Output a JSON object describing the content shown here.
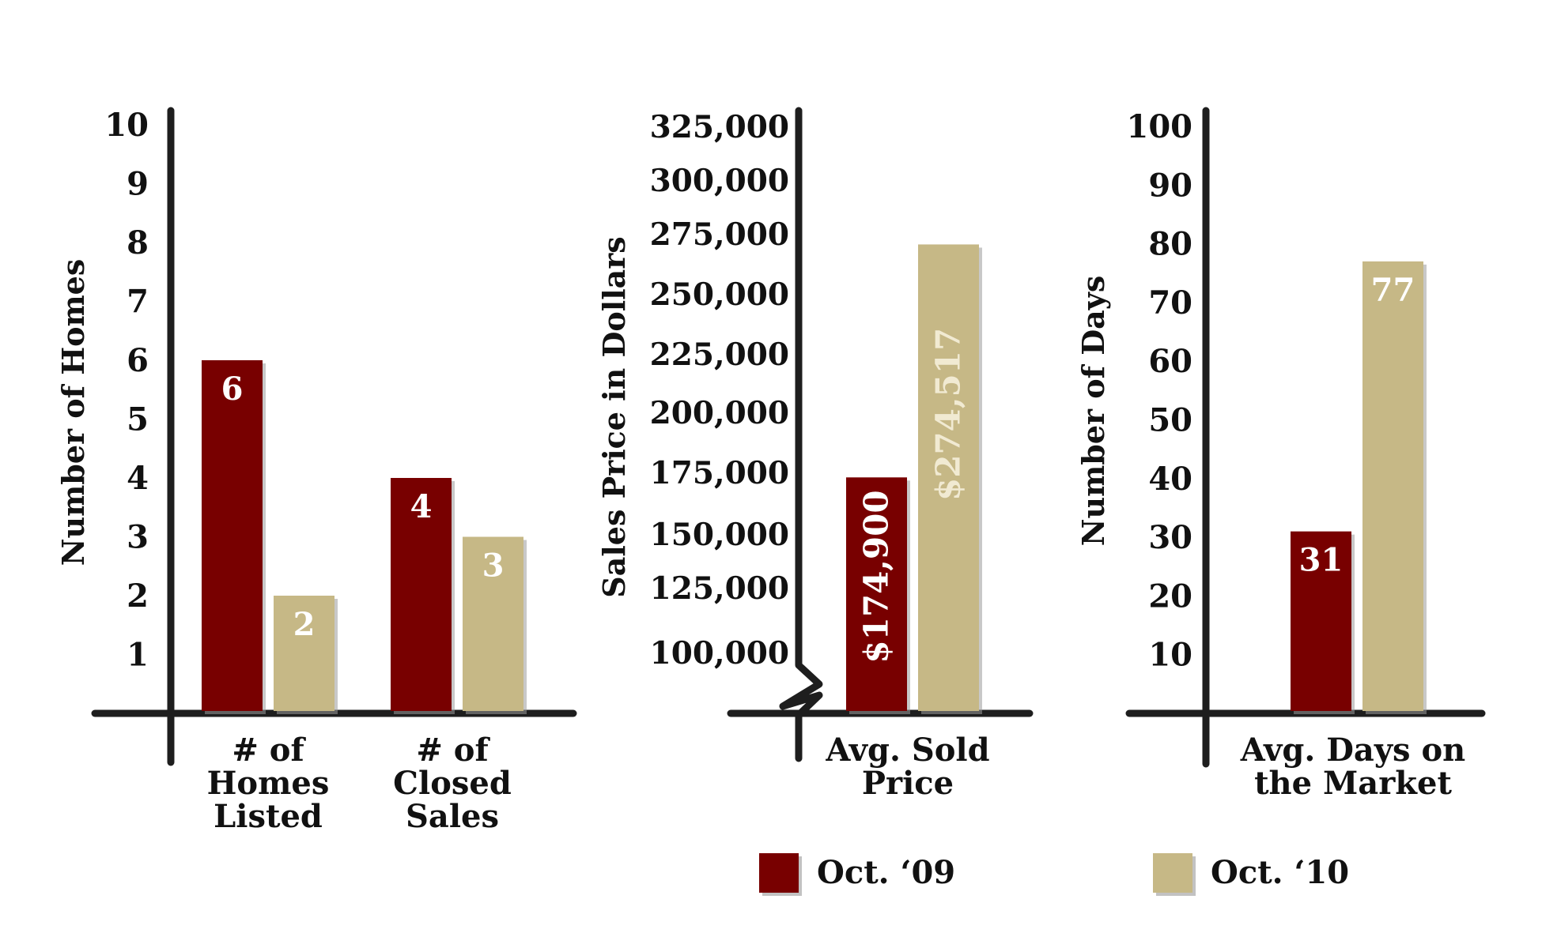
{
  "legend": [
    {
      "label": "Oct. ‘09",
      "color": "#780000"
    },
    {
      "label": "Oct. ‘10",
      "color": "#c6b886"
    }
  ],
  "chart_data": [
    {
      "type": "bar",
      "ylabel": "Number of Homes",
      "ylim": [
        0,
        10
      ],
      "yticks": [
        "1",
        "2",
        "3",
        "4",
        "5",
        "6",
        "7",
        "8",
        "9",
        "10"
      ],
      "categories": [
        "# of Homes Listed",
        "# of Closed Sales"
      ],
      "series": [
        {
          "name": "Oct. ‘09",
          "values": [
            6,
            4
          ],
          "labels": [
            "6",
            "4"
          ]
        },
        {
          "name": "Oct. ‘10",
          "values": [
            2,
            3
          ],
          "labels": [
            "2",
            "3"
          ]
        }
      ]
    },
    {
      "type": "bar",
      "ylabel": "Sales Price in Dollars",
      "ylim": [
        75000,
        325000
      ],
      "axis_break": true,
      "yticks": [
        "100,000",
        "125,000",
        "150,000",
        "175,000",
        "200,000",
        "225,000",
        "250,000",
        "275,000",
        "300,000",
        "325,000"
      ],
      "categories": [
        "Avg. Sold Price"
      ],
      "series": [
        {
          "name": "Oct. ‘09",
          "values": [
            174900
          ],
          "labels": [
            "$174,900"
          ]
        },
        {
          "name": "Oct. ‘10",
          "values": [
            274517
          ],
          "labels": [
            "$274,517"
          ]
        }
      ]
    },
    {
      "type": "bar",
      "ylabel": "Number of Days",
      "ylim": [
        0,
        100
      ],
      "yticks": [
        "10",
        "20",
        "30",
        "40",
        "50",
        "60",
        "70",
        "80",
        "90",
        "100"
      ],
      "categories": [
        "Avg. Days on the Market"
      ],
      "series": [
        {
          "name": "Oct. ‘09",
          "values": [
            31
          ],
          "labels": [
            "31"
          ]
        },
        {
          "name": "Oct. ‘10",
          "values": [
            77
          ],
          "labels": [
            "77"
          ]
        }
      ]
    }
  ]
}
